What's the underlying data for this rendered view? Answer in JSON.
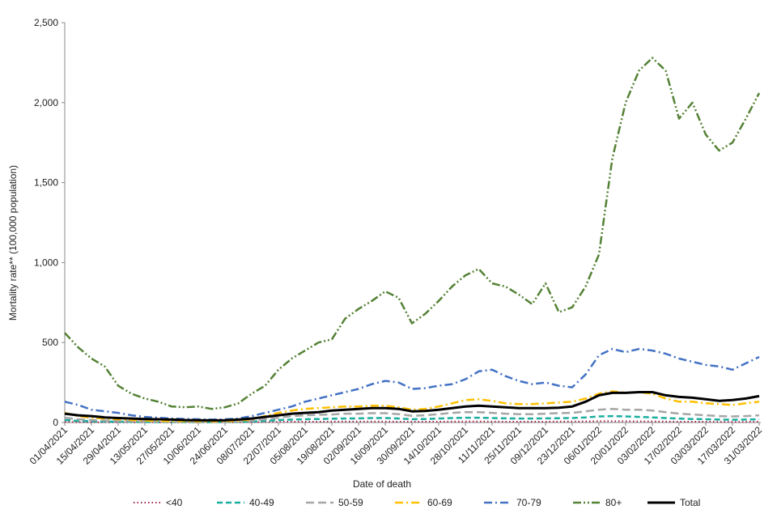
{
  "chart_data": {
    "type": "line",
    "y_label": "Mortality rate** (100,000 population)",
    "x_label": "Date of death",
    "categories": [
      "01/04/2021",
      null,
      "15/04/2021",
      null,
      "29/04/2021",
      null,
      "13/05/2021",
      null,
      "27/05/2021",
      null,
      "10/06/2021",
      null,
      "24/06/2021",
      null,
      "08/07/2021",
      null,
      "22/07/2021",
      null,
      "05/08/2021",
      null,
      "19/08/2021",
      null,
      "02/09/2021",
      null,
      "16/09/2021",
      null,
      "30/09/2021",
      null,
      "14/10/2021",
      null,
      "28/10/2021",
      null,
      "11/11/2021",
      null,
      "25/11/2021",
      null,
      "09/12/2021",
      null,
      "23/12/2021",
      null,
      "06/01/2022",
      null,
      "20/01/2022",
      null,
      "03/02/2022",
      null,
      "17/02/2022",
      null,
      "03/03/2022",
      null,
      "17/03/2022",
      null,
      "31/03/2022"
    ],
    "ylim": [
      0,
      2500
    ],
    "yticks": [
      0,
      500,
      {
        "value": 1000,
        "label": "1,000"
      },
      {
        "value": 1500,
        "label": "1,500"
      },
      {
        "value": 2000,
        "label": "2,000"
      },
      {
        "value": 2500,
        "label": "2,500"
      }
    ],
    "series": [
      {
        "name": "<40",
        "color": "#a0244c",
        "dash": "1.5,3",
        "width": 2,
        "values": [
          3,
          2,
          2,
          1,
          1,
          1,
          1,
          1,
          1,
          1,
          1,
          1,
          1,
          1,
          2,
          3,
          4,
          5,
          5,
          5,
          6,
          6,
          6,
          6,
          6,
          5,
          5,
          5,
          5,
          6,
          6,
          6,
          6,
          5,
          5,
          5,
          5,
          6,
          6,
          7,
          8,
          8,
          8,
          7,
          7,
          6,
          5,
          5,
          5,
          4,
          4,
          4,
          5
        ]
      },
      {
        "name": "40-49",
        "color": "#1aae9f",
        "dash": "7,4",
        "width": 2.5,
        "values": [
          15,
          10,
          8,
          6,
          5,
          4,
          3,
          3,
          3,
          3,
          2,
          2,
          3,
          4,
          6,
          10,
          15,
          18,
          20,
          22,
          24,
          25,
          26,
          28,
          28,
          25,
          20,
          22,
          25,
          28,
          30,
          30,
          28,
          26,
          25,
          25,
          26,
          27,
          28,
          32,
          38,
          40,
          38,
          35,
          32,
          28,
          25,
          22,
          20,
          18,
          17,
          18,
          20
        ]
      },
      {
        "name": "50-59",
        "color": "#a6a6a6",
        "dash": "10,5",
        "width": 2.5,
        "values": [
          30,
          20,
          15,
          12,
          10,
          8,
          7,
          6,
          5,
          5,
          4,
          4,
          5,
          6,
          10,
          20,
          30,
          40,
          45,
          48,
          50,
          55,
          55,
          58,
          58,
          52,
          42,
          45,
          52,
          60,
          65,
          65,
          60,
          55,
          52,
          52,
          55,
          58,
          60,
          70,
          80,
          85,
          80,
          80,
          75,
          65,
          55,
          50,
          45,
          40,
          38,
          40,
          45
        ]
      },
      {
        "name": "60-69",
        "color": "#ffc000",
        "dash": "10,4,2,4",
        "width": 2.5,
        "values": [
          60,
          40,
          30,
          25,
          20,
          15,
          12,
          10,
          8,
          8,
          7,
          7,
          8,
          10,
          20,
          40,
          60,
          75,
          85,
          90,
          95,
          100,
          100,
          105,
          105,
          95,
          80,
          85,
          100,
          120,
          140,
          145,
          135,
          120,
          115,
          115,
          120,
          125,
          130,
          150,
          180,
          195,
          185,
          190,
          180,
          150,
          130,
          130,
          120,
          115,
          110,
          120,
          130
        ]
      },
      {
        "name": "70-79",
        "color": "#4472c4",
        "dash": "10,4,2,4",
        "width": 2.5,
        "values": [
          130,
          110,
          80,
          70,
          60,
          45,
          35,
          30,
          25,
          22,
          20,
          18,
          20,
          25,
          40,
          60,
          80,
          100,
          130,
          150,
          170,
          190,
          210,
          240,
          260,
          250,
          210,
          215,
          230,
          240,
          270,
          320,
          330,
          290,
          260,
          240,
          250,
          230,
          220,
          300,
          420,
          460,
          440,
          460,
          450,
          430,
          400,
          380,
          360,
          350,
          330,
          370,
          410
        ]
      },
      {
        "name": "80+",
        "color": "#548235",
        "dash": "10,3,2,3,2,3",
        "width": 2.5,
        "values": [
          560,
          470,
          400,
          350,
          230,
          180,
          150,
          130,
          100,
          95,
          100,
          85,
          95,
          120,
          180,
          230,
          330,
          400,
          450,
          500,
          520,
          650,
          710,
          760,
          820,
          780,
          620,
          680,
          760,
          850,
          920,
          960,
          870,
          850,
          800,
          740,
          870,
          690,
          720,
          850,
          1050,
          1650,
          2000,
          2200,
          2280,
          2200,
          1900,
          2000,
          1800,
          1700,
          1750,
          1900,
          2060
        ]
      },
      {
        "name": "Total",
        "color": "#000000",
        "dash": "none",
        "width": 3,
        "values": [
          55,
          45,
          40,
          32,
          28,
          25,
          22,
          20,
          18,
          15,
          14,
          13,
          14,
          18,
          25,
          35,
          45,
          55,
          60,
          65,
          75,
          80,
          85,
          90,
          90,
          85,
          70,
          72,
          80,
          90,
          100,
          105,
          100,
          95,
          90,
          90,
          90,
          92,
          100,
          130,
          170,
          185,
          185,
          190,
          190,
          170,
          160,
          155,
          145,
          135,
          140,
          150,
          165
        ]
      }
    ]
  }
}
